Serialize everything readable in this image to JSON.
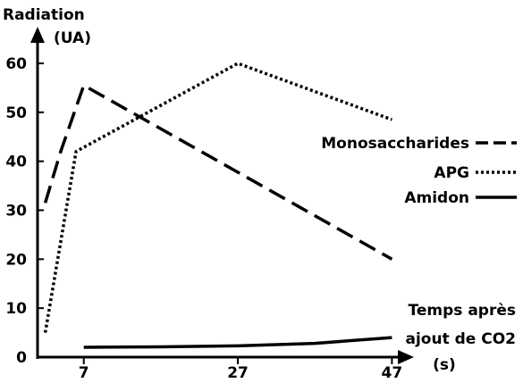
{
  "chart_data": {
    "type": "line",
    "ylabel_lines": [
      "Radiation",
      "(UA)"
    ],
    "xlabel_lines": [
      "Temps après",
      "ajout de CO2",
      "(s)"
    ],
    "x_ticks": [
      7,
      27,
      47
    ],
    "y_ticks": [
      0,
      10,
      20,
      30,
      40,
      50,
      60
    ],
    "xlim": [
      1,
      48
    ],
    "ylim": [
      0,
      62
    ],
    "legend_position": "right",
    "series": [
      {
        "name": "Monosaccharides",
        "style": "dashed",
        "x": [
          2,
          4,
          7,
          47
        ],
        "y": [
          31.5,
          42,
          55.5,
          20
        ]
      },
      {
        "name": "APG",
        "style": "dotted",
        "x": [
          2,
          6,
          27,
          47
        ],
        "y": [
          5,
          42,
          60,
          48.5
        ]
      },
      {
        "name": "Amidon",
        "style": "solid",
        "x": [
          7,
          17,
          27,
          37,
          47
        ],
        "y": [
          2,
          2.1,
          2.3,
          2.8,
          4
        ]
      }
    ]
  }
}
